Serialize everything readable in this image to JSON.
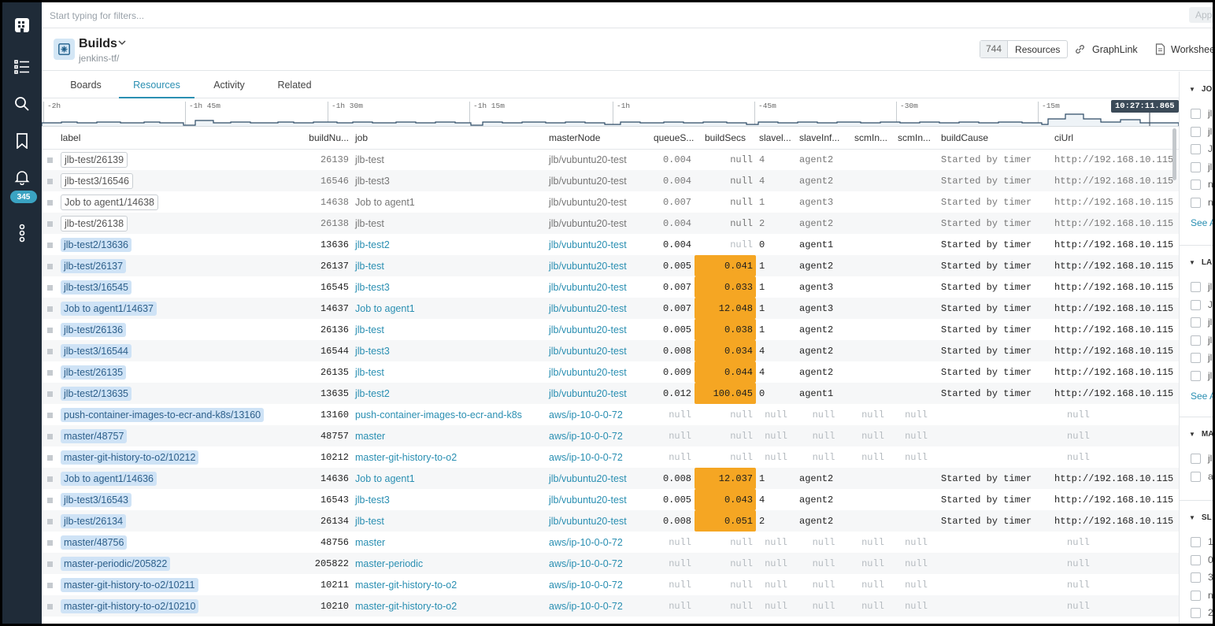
{
  "nav": {
    "badge_count": "345"
  },
  "filter": {
    "placeholder": "Start typing for filters...",
    "apply_label": "Apply"
  },
  "header": {
    "title": "Builds",
    "subtitle": "jenkins-tf/",
    "resource_count": "744",
    "resources_label": "Resources",
    "graphlink_label": "GraphLink",
    "worksheet_label": "Worksheet"
  },
  "tabs": [
    {
      "label": "Boards",
      "active": false
    },
    {
      "label": "Resources",
      "active": true
    },
    {
      "label": "Activity",
      "active": false
    },
    {
      "label": "Related",
      "active": false
    }
  ],
  "timeline": {
    "ticks": [
      "-2h",
      "-1h 45m",
      "-1h 30m",
      "-1h 15m",
      "-1h",
      "-45m",
      "-30m",
      "-15m"
    ],
    "current_time": "10:27:11.865"
  },
  "table": {
    "columns": [
      "label",
      "buildNu...",
      "job",
      "masterNode",
      "queueS...",
      "buildSecs",
      "slavel...",
      "slaveInf...",
      "scmIn...",
      "scmIn...",
      "buildCause",
      "ciUrl"
    ],
    "rows": [
      {
        "state": "stale",
        "label": "jlb-test/26139",
        "build": "26139",
        "job": "jlb-test",
        "master": "jlb/vubuntu20-test",
        "queue": "0.004",
        "secs": "null",
        "secs_hi": false,
        "slavel": "4",
        "slaveinf": "agent2",
        "scm1": "",
        "scm2": "",
        "cause": "Started by timer",
        "ciurl": "http://192.168.10.115"
      },
      {
        "state": "stale",
        "label": "jlb-test3/16546",
        "build": "16546",
        "job": "jlb-test3",
        "master": "jlb/vubuntu20-test",
        "queue": "0.004",
        "secs": "null",
        "secs_hi": false,
        "slavel": "4",
        "slaveinf": "agent2",
        "scm1": "",
        "scm2": "",
        "cause": "Started by timer",
        "ciurl": "http://192.168.10.115"
      },
      {
        "state": "stale",
        "label": "Job to agent1/14638",
        "build": "14638",
        "job": "Job to agent1",
        "master": "jlb/vubuntu20-test",
        "queue": "0.007",
        "secs": "null",
        "secs_hi": false,
        "slavel": "1",
        "slaveinf": "agent3",
        "scm1": "",
        "scm2": "",
        "cause": "Started by timer",
        "ciurl": "http://192.168.10.115"
      },
      {
        "state": "stale",
        "label": "jlb-test/26138",
        "build": "26138",
        "job": "jlb-test",
        "master": "jlb/vubuntu20-test",
        "queue": "0.004",
        "secs": "null",
        "secs_hi": false,
        "slavel": "2",
        "slaveinf": "agent2",
        "scm1": "",
        "scm2": "",
        "cause": "Started by timer",
        "ciurl": "http://192.168.10.115"
      },
      {
        "state": "live",
        "label": "jlb-test2/13636",
        "build": "13636",
        "job": "jlb-test2",
        "master": "jlb/vubuntu20-test",
        "queue": "0.004",
        "secs": "null",
        "secs_hi": false,
        "slavel": "0",
        "slaveinf": "agent1",
        "scm1": "",
        "scm2": "",
        "cause": "Started by timer",
        "ciurl": "http://192.168.10.115"
      },
      {
        "state": "live",
        "label": "jlb-test/26137",
        "build": "26137",
        "job": "jlb-test",
        "master": "jlb/vubuntu20-test",
        "queue": "0.005",
        "secs": "0.041",
        "secs_hi": true,
        "slavel": "1",
        "slaveinf": "agent2",
        "scm1": "",
        "scm2": "",
        "cause": "Started by timer",
        "ciurl": "http://192.168.10.115"
      },
      {
        "state": "live",
        "label": "jlb-test3/16545",
        "build": "16545",
        "job": "jlb-test3",
        "master": "jlb/vubuntu20-test",
        "queue": "0.007",
        "secs": "0.033",
        "secs_hi": true,
        "slavel": "1",
        "slaveinf": "agent3",
        "scm1": "",
        "scm2": "",
        "cause": "Started by timer",
        "ciurl": "http://192.168.10.115"
      },
      {
        "state": "live",
        "label": "Job to agent1/14637",
        "build": "14637",
        "job": "Job to agent1",
        "master": "jlb/vubuntu20-test",
        "queue": "0.007",
        "secs": "12.048",
        "secs_hi": true,
        "slavel": "1",
        "slaveinf": "agent3",
        "scm1": "",
        "scm2": "",
        "cause": "Started by timer",
        "ciurl": "http://192.168.10.115"
      },
      {
        "state": "live",
        "label": "jlb-test/26136",
        "build": "26136",
        "job": "jlb-test",
        "master": "jlb/vubuntu20-test",
        "queue": "0.005",
        "secs": "0.038",
        "secs_hi": true,
        "slavel": "1",
        "slaveinf": "agent2",
        "scm1": "",
        "scm2": "",
        "cause": "Started by timer",
        "ciurl": "http://192.168.10.115"
      },
      {
        "state": "live",
        "label": "jlb-test3/16544",
        "build": "16544",
        "job": "jlb-test3",
        "master": "jlb/vubuntu20-test",
        "queue": "0.008",
        "secs": "0.034",
        "secs_hi": true,
        "slavel": "4",
        "slaveinf": "agent2",
        "scm1": "",
        "scm2": "",
        "cause": "Started by timer",
        "ciurl": "http://192.168.10.115"
      },
      {
        "state": "live",
        "label": "jlb-test/26135",
        "build": "26135",
        "job": "jlb-test",
        "master": "jlb/vubuntu20-test",
        "queue": "0.009",
        "secs": "0.044",
        "secs_hi": true,
        "slavel": "4",
        "slaveinf": "agent2",
        "scm1": "",
        "scm2": "",
        "cause": "Started by timer",
        "ciurl": "http://192.168.10.115"
      },
      {
        "state": "live",
        "label": "jlb-test2/13635",
        "build": "13635",
        "job": "jlb-test2",
        "master": "jlb/vubuntu20-test",
        "queue": "0.012",
        "secs": "100.045",
        "secs_hi": true,
        "slavel": "0",
        "slaveinf": "agent1",
        "scm1": "",
        "scm2": "",
        "cause": "Started by timer",
        "ciurl": "http://192.168.10.115"
      },
      {
        "state": "live",
        "label": "push-container-images-to-ecr-and-k8s/13160",
        "build": "13160",
        "job": "push-container-images-to-ecr-and-k8s",
        "master": "aws/ip-10-0-0-72",
        "queue": "null",
        "secs": "null",
        "secs_hi": false,
        "slavel": "null",
        "slaveinf": "null",
        "scm1": "null",
        "scm2": "null",
        "cause": "",
        "ciurl": "null",
        "nulls": true
      },
      {
        "state": "live",
        "label": "master/48757",
        "build": "48757",
        "job": "master",
        "master": "aws/ip-10-0-0-72",
        "queue": "null",
        "secs": "null",
        "secs_hi": false,
        "slavel": "null",
        "slaveinf": "null",
        "scm1": "null",
        "scm2": "null",
        "cause": "",
        "ciurl": "null",
        "nulls": true
      },
      {
        "state": "live",
        "label": "master-git-history-to-o2/10212",
        "build": "10212",
        "job": "master-git-history-to-o2",
        "master": "aws/ip-10-0-0-72",
        "queue": "null",
        "secs": "null",
        "secs_hi": false,
        "slavel": "null",
        "slaveinf": "null",
        "scm1": "null",
        "scm2": "null",
        "cause": "",
        "ciurl": "null",
        "nulls": true
      },
      {
        "state": "live",
        "label": "Job to agent1/14636",
        "build": "14636",
        "job": "Job to agent1",
        "master": "jlb/vubuntu20-test",
        "queue": "0.008",
        "secs": "12.037",
        "secs_hi": true,
        "slavel": "1",
        "slaveinf": "agent2",
        "scm1": "",
        "scm2": "",
        "cause": "Started by timer",
        "ciurl": "http://192.168.10.115"
      },
      {
        "state": "live",
        "label": "jlb-test3/16543",
        "build": "16543",
        "job": "jlb-test3",
        "master": "jlb/vubuntu20-test",
        "queue": "0.005",
        "secs": "0.043",
        "secs_hi": true,
        "slavel": "4",
        "slaveinf": "agent2",
        "scm1": "",
        "scm2": "",
        "cause": "Started by timer",
        "ciurl": "http://192.168.10.115"
      },
      {
        "state": "live",
        "label": "jlb-test/26134",
        "build": "26134",
        "job": "jlb-test",
        "master": "jlb/vubuntu20-test",
        "queue": "0.008",
        "secs": "0.051",
        "secs_hi": true,
        "slavel": "2",
        "slaveinf": "agent2",
        "scm1": "",
        "scm2": "",
        "cause": "Started by timer",
        "ciurl": "http://192.168.10.115"
      },
      {
        "state": "live",
        "label": "master/48756",
        "build": "48756",
        "job": "master",
        "master": "aws/ip-10-0-0-72",
        "queue": "null",
        "secs": "null",
        "secs_hi": false,
        "slavel": "null",
        "slaveinf": "null",
        "scm1": "null",
        "scm2": "null",
        "cause": "",
        "ciurl": "null",
        "nulls": true
      },
      {
        "state": "live",
        "label": "master-periodic/205822",
        "build": "205822",
        "job": "master-periodic",
        "master": "aws/ip-10-0-0-72",
        "queue": "null",
        "secs": "null",
        "secs_hi": false,
        "slavel": "null",
        "slaveinf": "null",
        "scm1": "null",
        "scm2": "null",
        "cause": "",
        "ciurl": "null",
        "nulls": true
      },
      {
        "state": "live",
        "label": "master-git-history-to-o2/10211",
        "build": "10211",
        "job": "master-git-history-to-o2",
        "master": "aws/ip-10-0-0-72",
        "queue": "null",
        "secs": "null",
        "secs_hi": false,
        "slavel": "null",
        "slaveinf": "null",
        "scm1": "null",
        "scm2": "null",
        "cause": "",
        "ciurl": "null",
        "nulls": true
      },
      {
        "state": "live",
        "label": "master-git-history-to-o2/10210",
        "build": "10210",
        "job": "master-git-history-to-o2",
        "master": "aws/ip-10-0-0-72",
        "queue": "null",
        "secs": "null",
        "secs_hi": false,
        "slavel": "null",
        "slaveinf": "null",
        "scm1": "null",
        "scm2": "null",
        "cause": "",
        "ciurl": "null",
        "nulls": true
      }
    ]
  },
  "facets": [
    {
      "head": "JO",
      "items": [
        "jl",
        "jl",
        "J",
        "jl",
        "n",
        "n"
      ],
      "see_all": "See A"
    },
    {
      "head": "LA",
      "items": [
        "jl",
        "J",
        "jl",
        "jl",
        "jl",
        "jl"
      ],
      "see_all": "See A"
    },
    {
      "head": "MA",
      "items": [
        "jl",
        "a"
      ],
      "see_all": ""
    },
    {
      "head": "SL",
      "items": [
        "1",
        "0",
        "3",
        "n",
        "2"
      ],
      "see_all": ""
    }
  ],
  "colors": {
    "nav_bg": "#1f2b38",
    "accent": "#2a8fb2",
    "highlight": "#f5a623",
    "label_chip": "#cfe3f6"
  }
}
